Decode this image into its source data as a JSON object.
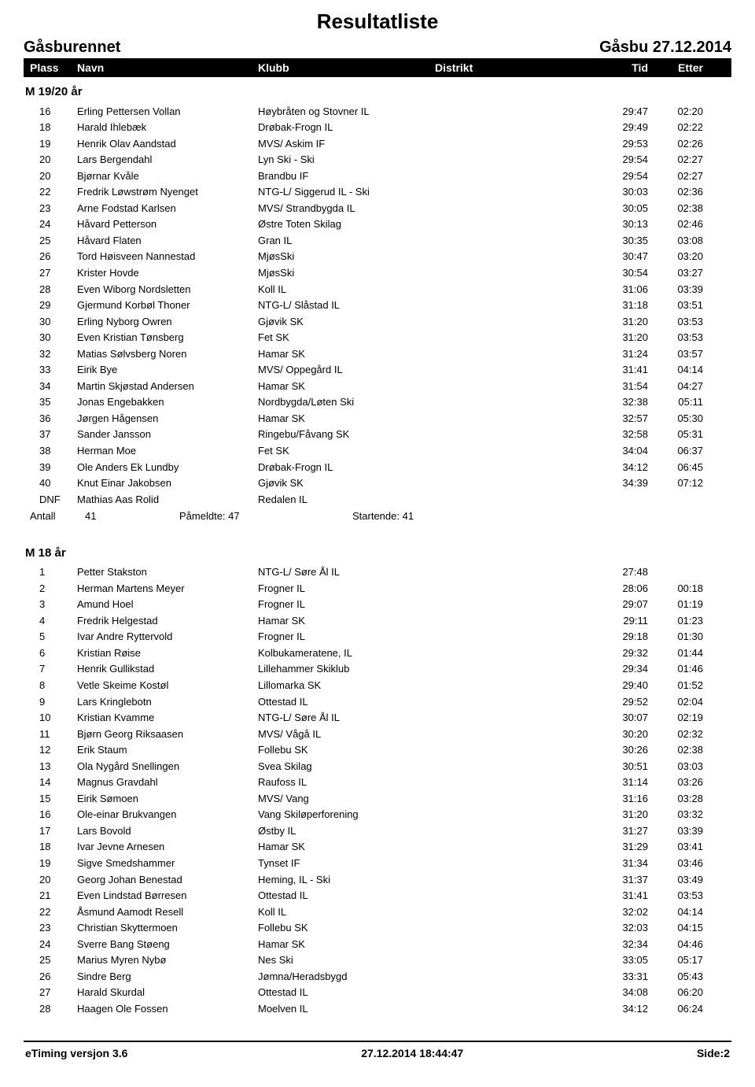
{
  "title": "Resultatliste",
  "event_name": "Gåsburennet",
  "event_place_date": "Gåsbu  27.12.2014",
  "headers": {
    "plass": "Plass",
    "navn": "Navn",
    "klubb": "Klubb",
    "distrikt": "Distrikt",
    "tid": "Tid",
    "etter": "Etter"
  },
  "group1": {
    "label": "M 19/20 år",
    "rows": [
      {
        "p": "16",
        "n": "Erling Pettersen Vollan",
        "k": "Høybråten og Stovner IL",
        "t": "29:47",
        "e": "02:20"
      },
      {
        "p": "18",
        "n": "Harald Ihlebæk",
        "k": "Drøbak-Frogn IL",
        "t": "29:49",
        "e": "02:22"
      },
      {
        "p": "19",
        "n": "Henrik Olav Aandstad",
        "k": "MVS/ Askim IF",
        "t": "29:53",
        "e": "02:26"
      },
      {
        "p": "20",
        "n": "Lars Bergendahl",
        "k": "Lyn Ski - Ski",
        "t": "29:54",
        "e": "02:27"
      },
      {
        "p": "20",
        "n": "Bjørnar Kvåle",
        "k": "Brandbu IF",
        "t": "29:54",
        "e": "02:27"
      },
      {
        "p": "22",
        "n": "Fredrik Løwstrøm Nyenget",
        "k": "NTG-L/ Siggerud IL - Ski",
        "t": "30:03",
        "e": "02:36"
      },
      {
        "p": "23",
        "n": "Arne Fodstad Karlsen",
        "k": "MVS/ Strandbygda IL",
        "t": "30:05",
        "e": "02:38"
      },
      {
        "p": "24",
        "n": "Håvard Petterson",
        "k": "Østre Toten Skilag",
        "t": "30:13",
        "e": "02:46"
      },
      {
        "p": "25",
        "n": "Håvard Flaten",
        "k": "Gran IL",
        "t": "30:35",
        "e": "03:08"
      },
      {
        "p": "26",
        "n": "Tord Høisveen Nannestad",
        "k": "MjøsSki",
        "t": "30:47",
        "e": "03:20"
      },
      {
        "p": "27",
        "n": "Krister Hovde",
        "k": "MjøsSki",
        "t": "30:54",
        "e": "03:27"
      },
      {
        "p": "28",
        "n": "Even Wiborg Nordsletten",
        "k": "Koll IL",
        "t": "31:06",
        "e": "03:39"
      },
      {
        "p": "29",
        "n": "Gjermund Korbøl Thoner",
        "k": "NTG-L/ Slåstad IL",
        "t": "31:18",
        "e": "03:51"
      },
      {
        "p": "30",
        "n": "Erling Nyborg Owren",
        "k": "Gjøvik SK",
        "t": "31:20",
        "e": "03:53"
      },
      {
        "p": "30",
        "n": "Even Kristian Tønsberg",
        "k": "Fet SK",
        "t": "31:20",
        "e": "03:53"
      },
      {
        "p": "32",
        "n": "Matias Sølvsberg Noren",
        "k": "Hamar SK",
        "t": "31:24",
        "e": "03:57"
      },
      {
        "p": "33",
        "n": "Eirik Bye",
        "k": "MVS/ Oppegård IL",
        "t": "31:41",
        "e": "04:14"
      },
      {
        "p": "34",
        "n": "Martin Skjøstad Andersen",
        "k": "Hamar SK",
        "t": "31:54",
        "e": "04:27"
      },
      {
        "p": "35",
        "n": "Jonas Engebakken",
        "k": "Nordbygda/Løten Ski",
        "t": "32:38",
        "e": "05:11"
      },
      {
        "p": "36",
        "n": "Jørgen Hågensen",
        "k": "Hamar SK",
        "t": "32:57",
        "e": "05:30"
      },
      {
        "p": "37",
        "n": "Sander Jansson",
        "k": "Ringebu/Fåvang SK",
        "t": "32:58",
        "e": "05:31"
      },
      {
        "p": "38",
        "n": "Herman Moe",
        "k": "Fet SK",
        "t": "34:04",
        "e": "06:37"
      },
      {
        "p": "39",
        "n": "Ole Anders Ek Lundby",
        "k": "Drøbak-Frogn IL",
        "t": "34:12",
        "e": "06:45"
      },
      {
        "p": "40",
        "n": "Knut Einar Jakobsen",
        "k": "Gjøvik SK",
        "t": "34:39",
        "e": "07:12"
      },
      {
        "p": "DNF",
        "n": "Mathias Aas Rolid",
        "k": "Redalen IL",
        "t": "",
        "e": ""
      }
    ],
    "summary": {
      "antall_label": "Antall",
      "antall": "41",
      "pameldte": "Påmeldte:  47",
      "startende": "Startende: 41"
    }
  },
  "group2": {
    "label": "M 18 år",
    "rows": [
      {
        "p": "1",
        "n": "Petter Stakston",
        "k": "NTG-L/ Søre Ål IL",
        "t": "27:48",
        "e": ""
      },
      {
        "p": "2",
        "n": "Herman Martens Meyer",
        "k": "Frogner IL",
        "t": "28:06",
        "e": "00:18"
      },
      {
        "p": "3",
        "n": "Amund Hoel",
        "k": "Frogner IL",
        "t": "29:07",
        "e": "01:19"
      },
      {
        "p": "4",
        "n": "Fredrik Helgestad",
        "k": "Hamar SK",
        "t": "29:11",
        "e": "01:23"
      },
      {
        "p": "5",
        "n": "Ivar Andre Ryttervold",
        "k": "Frogner IL",
        "t": "29:18",
        "e": "01:30"
      },
      {
        "p": "6",
        "n": "Kristian Røise",
        "k": "Kolbukameratene, IL",
        "t": "29:32",
        "e": "01:44"
      },
      {
        "p": "7",
        "n": "Henrik Gullikstad",
        "k": "Lillehammer Skiklub",
        "t": "29:34",
        "e": "01:46"
      },
      {
        "p": "8",
        "n": "Vetle Skeime Kostøl",
        "k": "Lillomarka SK",
        "t": "29:40",
        "e": "01:52"
      },
      {
        "p": "9",
        "n": "Lars Kringlebotn",
        "k": "Ottestad IL",
        "t": "29:52",
        "e": "02:04"
      },
      {
        "p": "10",
        "n": "Kristian Kvamme",
        "k": "NTG-L/ Søre Ål IL",
        "t": "30:07",
        "e": "02:19"
      },
      {
        "p": "11",
        "n": "Bjørn Georg Riksaasen",
        "k": "MVS/ Vågå IL",
        "t": "30:20",
        "e": "02:32"
      },
      {
        "p": "12",
        "n": "Erik Staum",
        "k": "Follebu SK",
        "t": "30:26",
        "e": "02:38"
      },
      {
        "p": "13",
        "n": "Ola Nygård Snellingen",
        "k": "Svea Skilag",
        "t": "30:51",
        "e": "03:03"
      },
      {
        "p": "14",
        "n": "Magnus Gravdahl",
        "k": "Raufoss IL",
        "t": "31:14",
        "e": "03:26"
      },
      {
        "p": "15",
        "n": "Eirik Sømoen",
        "k": "MVS/ Vang",
        "t": "31:16",
        "e": "03:28"
      },
      {
        "p": "16",
        "n": "Ole-einar Brukvangen",
        "k": "Vang Skiløperforening",
        "t": "31:20",
        "e": "03:32"
      },
      {
        "p": "17",
        "n": "Lars Bovold",
        "k": "Østby IL",
        "t": "31:27",
        "e": "03:39"
      },
      {
        "p": "18",
        "n": "Ivar Jevne Arnesen",
        "k": "Hamar SK",
        "t": "31:29",
        "e": "03:41"
      },
      {
        "p": "19",
        "n": "Sigve Smedshammer",
        "k": "Tynset IF",
        "t": "31:34",
        "e": "03:46"
      },
      {
        "p": "20",
        "n": "Georg Johan Benestad",
        "k": "Heming, IL - Ski",
        "t": "31:37",
        "e": "03:49"
      },
      {
        "p": "21",
        "n": "Even Lindstad Børresen",
        "k": "Ottestad IL",
        "t": "31:41",
        "e": "03:53"
      },
      {
        "p": "22",
        "n": "Åsmund Aamodt Resell",
        "k": "Koll IL",
        "t": "32:02",
        "e": "04:14"
      },
      {
        "p": "23",
        "n": "Christian Skyttermoen",
        "k": "Follebu SK",
        "t": "32:03",
        "e": "04:15"
      },
      {
        "p": "24",
        "n": "Sverre Bang Støeng",
        "k": "Hamar SK",
        "t": "32:34",
        "e": "04:46"
      },
      {
        "p": "25",
        "n": "Marius Myren Nybø",
        "k": "Nes Ski",
        "t": "33:05",
        "e": "05:17"
      },
      {
        "p": "26",
        "n": "Sindre Berg",
        "k": "Jømna/Heradsbygd",
        "t": "33:31",
        "e": "05:43"
      },
      {
        "p": "27",
        "n": "Harald Skurdal",
        "k": "Ottestad IL",
        "t": "34:08",
        "e": "06:20"
      },
      {
        "p": "28",
        "n": "Haagen Ole Fossen",
        "k": "Moelven IL",
        "t": "34:12",
        "e": "06:24"
      }
    ]
  },
  "footer": {
    "left": "eTiming versjon 3.6",
    "center": "27.12.2014 18:44:47",
    "right": "Side:2"
  }
}
